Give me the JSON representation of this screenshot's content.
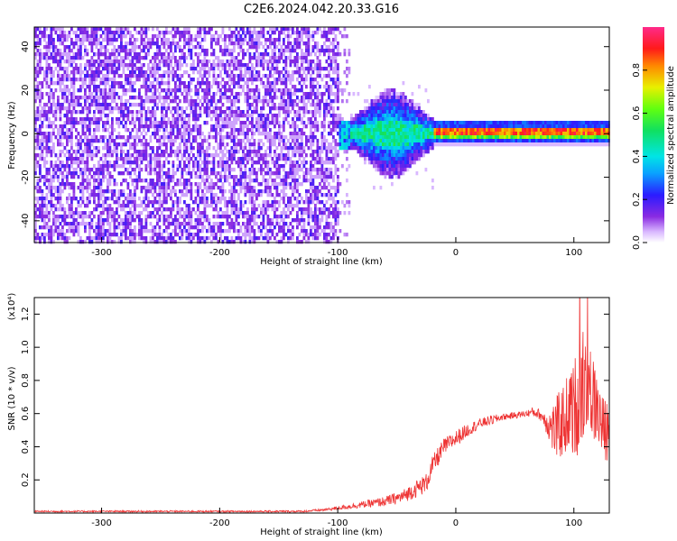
{
  "title": "C2E6.2024.042.20.33.G16",
  "chart_data": [
    {
      "type": "heatmap",
      "title": "C2E6.2024.042.20.33.G16",
      "xlabel": "Height of straight line (km)",
      "ylabel": "Frequency (Hz)",
      "xlim": [
        -357,
        130
      ],
      "ylim": [
        -50,
        49
      ],
      "x_ticks": [
        -300,
        -200,
        -100,
        0,
        100
      ],
      "y_ticks": [
        -40,
        -20,
        0,
        20,
        40
      ],
      "colorbar": {
        "label": "Normalized spectral amplitude",
        "range": [
          0,
          1
        ],
        "ticks": [
          0.0,
          0.2,
          0.4,
          0.6,
          0.8
        ],
        "colormap": "rainbow (purple-blue-cyan-green-yellow-red-magenta)"
      },
      "features": [
        {
          "x_range": [
            -357,
            -100
          ],
          "description": "broadband low-amplitude noise across all frequencies"
        },
        {
          "x_range": [
            -100,
            -20
          ],
          "freq_center": 0,
          "freq_spread": 10,
          "amplitude": 0.35
        },
        {
          "x_range": [
            -20,
            130
          ],
          "freq_center": 1.5,
          "freq_spread": 2,
          "amplitude": 0.9
        }
      ]
    },
    {
      "type": "line",
      "xlabel": "Height of straight line (km)",
      "ylabel": "SNR (10 * v/v)",
      "y_multiplier": "(x10⁴)",
      "xlim": [
        -357,
        130
      ],
      "ylim": [
        0,
        1.3
      ],
      "x_ticks": [
        -300,
        -200,
        -100,
        0,
        100
      ],
      "y_ticks": [
        0.2,
        0.4,
        0.6,
        0.8,
        1.0,
        1.2
      ],
      "series": [
        {
          "color": "#ee3333",
          "x": [
            -357,
            -300,
            -200,
            -130,
            -110,
            -100,
            -80,
            -60,
            -45,
            -35,
            -25,
            -20,
            -15,
            -10,
            0,
            10,
            20,
            30,
            40,
            50,
            60,
            65,
            70,
            75,
            80,
            85,
            90,
            95,
            100,
            105,
            110,
            115,
            120,
            125,
            130
          ],
          "y": [
            0.01,
            0.01,
            0.01,
            0.01,
            0.02,
            0.03,
            0.05,
            0.07,
            0.1,
            0.14,
            0.18,
            0.28,
            0.34,
            0.4,
            0.45,
            0.5,
            0.54,
            0.56,
            0.58,
            0.59,
            0.6,
            0.61,
            0.6,
            0.57,
            0.52,
            0.5,
            0.55,
            0.6,
            0.62,
            0.75,
            0.85,
            0.7,
            0.62,
            0.5,
            0.5
          ],
          "noise": [
            0.005,
            0.005,
            0.005,
            0.006,
            0.008,
            0.012,
            0.02,
            0.03,
            0.04,
            0.05,
            0.06,
            0.06,
            0.06,
            0.05,
            0.05,
            0.04,
            0.03,
            0.03,
            0.02,
            0.02,
            0.02,
            0.03,
            0.03,
            0.05,
            0.12,
            0.2,
            0.22,
            0.24,
            0.28,
            0.4,
            0.35,
            0.28,
            0.22,
            0.2,
            0.18
          ]
        }
      ]
    }
  ]
}
